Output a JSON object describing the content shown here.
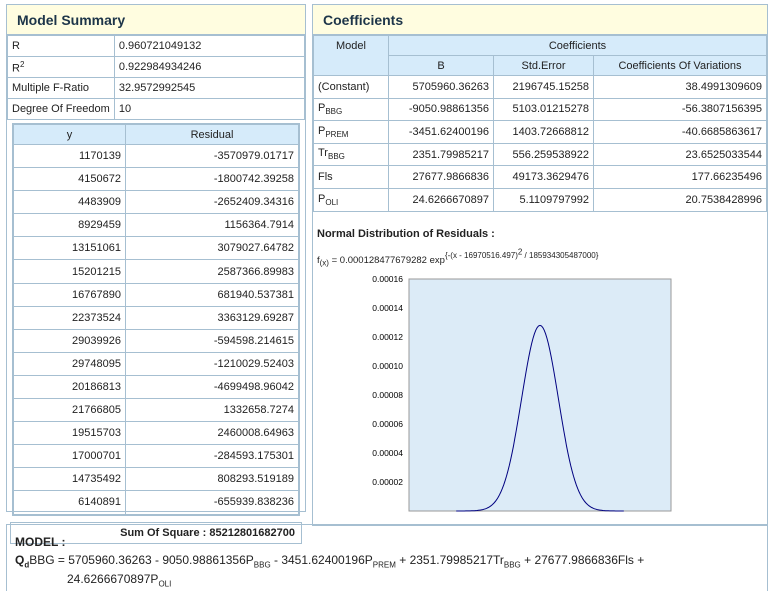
{
  "model_summary": {
    "title": "Model Summary",
    "rows": [
      {
        "label": "R",
        "value": "0.960721049132"
      },
      {
        "label": "R",
        "label_sup": "2",
        "value": "0.922984934246"
      },
      {
        "label": "Multiple F-Ratio",
        "value": "32.9572992545"
      },
      {
        "label": "Degree Of Freedom",
        "value": "10"
      }
    ],
    "residual_table": {
      "headers": [
        "y",
        "Residual"
      ],
      "rows": [
        [
          "1170139",
          "-3570979.01717"
        ],
        [
          "4150672",
          "-1800742.39258"
        ],
        [
          "4483909",
          "-2652409.34316"
        ],
        [
          "8929459",
          "1156364.7914"
        ],
        [
          "13151061",
          "3079027.64782"
        ],
        [
          "15201215",
          "2587366.89983"
        ],
        [
          "16767890",
          "681940.537381"
        ],
        [
          "22373524",
          "3363129.69287"
        ],
        [
          "29039926",
          "-594598.214615"
        ],
        [
          "29748095",
          "-1210029.52403"
        ],
        [
          "20186813",
          "-4699498.96042"
        ],
        [
          "21766805",
          "1332658.7274"
        ],
        [
          "19515703",
          "2460008.64963"
        ],
        [
          "17000701",
          "-284593.175301"
        ],
        [
          "14735492",
          "808293.519189"
        ],
        [
          "6140891",
          "-655939.838236"
        ]
      ],
      "sum_of_square": "Sum Of Square : 85212801682700"
    }
  },
  "coefficients": {
    "title": "Coefficients",
    "group_header_model": "Model",
    "group_header_coefficients": "Coefficients",
    "headers": [
      "B",
      "Std.Error",
      "Coefficients Of Variations"
    ],
    "rows": [
      {
        "model": "(Constant)",
        "sub": "",
        "b": "5705960.36263",
        "se": "2196745.15258",
        "cv": "38.4991309609"
      },
      {
        "model": "P",
        "sub": "BBG",
        "b": "-9050.98861356",
        "se": "5103.01215278",
        "cv": "-56.3807156395"
      },
      {
        "model": "P",
        "sub": "PREM",
        "b": "-3451.62400196",
        "se": "1403.72668812",
        "cv": "-40.6685863617"
      },
      {
        "model": "Tr",
        "sub": "BBG",
        "b": "2351.79985217",
        "se": "556.259538922",
        "cv": "23.6525033544"
      },
      {
        "model": "Fls",
        "sub": "",
        "b": "27677.9866836",
        "se": "49173.3629476",
        "cv": "177.66235496"
      },
      {
        "model": "P",
        "sub": "OLI",
        "b": "24.6266670897",
        "se": "5.1109797992",
        "cv": "20.7538428996"
      }
    ]
  },
  "normal_distribution": {
    "title": "Normal Distribution of Residuals :",
    "formula_prefix": "f",
    "formula_sub": "(x)",
    "formula_body": " = 0.000128477679282 exp",
    "formula_sup_a": "{-(x - 16970516.497)",
    "formula_sup_b": "2",
    "formula_sup_c": " / 185934305487000}"
  },
  "chart_data": {
    "type": "area",
    "title": "",
    "xlabel": "",
    "ylabel": "",
    "y_ticks": [
      "0.00016",
      "0.00014",
      "0.00012",
      "0.00010",
      "0.00008",
      "0.00006",
      "0.00004",
      "0.00002"
    ],
    "ylim": [
      0,
      0.00016
    ],
    "series": [
      {
        "x": [
          0.18,
          0.26,
          0.33,
          0.4,
          0.46,
          0.5,
          0.54,
          0.6,
          0.67,
          0.74,
          0.82
        ],
        "values": [
          0.0,
          1e-05,
          3e-05,
          7e-05,
          0.000115,
          0.000128,
          0.000115,
          7e-05,
          3e-05,
          1e-05,
          0.0
        ]
      }
    ],
    "grid": false,
    "fill_color": "#dcebf7",
    "line_color": "#000080"
  },
  "model": {
    "label": "MODEL :",
    "lhs_main": "Q",
    "lhs_sub": "d",
    "lhs_rest": "BBG",
    "eq_parts": [
      {
        "t": " = 5705960.36263 - 9050.98861356P"
      },
      {
        "s": "BBG"
      },
      {
        "t": " - 3451.62400196P"
      },
      {
        "s": "PREM"
      },
      {
        "t": " + 2351.79985217Tr"
      },
      {
        "s": "BBG"
      },
      {
        "t": " + 27677.9866836Fls +"
      }
    ],
    "line2_value": "24.6266670897P",
    "line2_sub": "OLI"
  }
}
